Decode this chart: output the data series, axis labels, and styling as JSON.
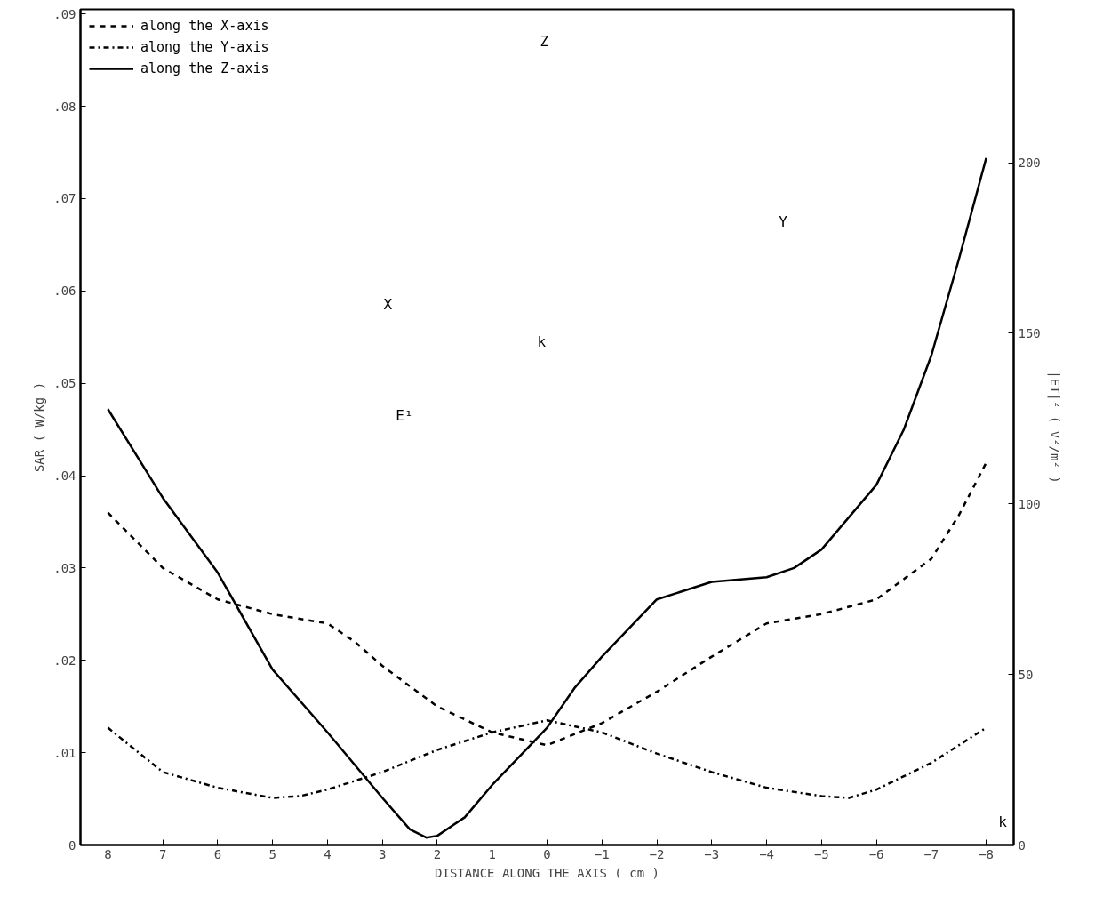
{
  "chart_data": {
    "type": "line",
    "xlabel": "DISTANCE ALONG THE AXIS ( cm )",
    "ylabel": "SAR ( W/kg )",
    "y2label": "|ET|² ( V²/m² )",
    "xlim": [
      8.5,
      -8.5
    ],
    "xticks": [
      8,
      7,
      6,
      5,
      4,
      3,
      2,
      1,
      0,
      -1,
      -2,
      -3,
      -4,
      -5,
      -6,
      -7,
      -8
    ],
    "ylim": [
      0,
      0.0905
    ],
    "yticks": [
      0,
      {
        "value": 0.01,
        "label": ".01"
      },
      {
        "value": 0.02,
        "label": ".02"
      },
      {
        "value": 0.03,
        "label": ".03"
      },
      {
        "value": 0.04,
        "label": ".04"
      },
      {
        "value": 0.05,
        "label": ".05"
      },
      {
        "value": 0.06,
        "label": ".06"
      },
      {
        "value": 0.07,
        "label": ".07"
      },
      {
        "value": 0.08,
        "label": ".08"
      },
      {
        "value": 0.09,
        "label": ".09"
      }
    ],
    "y2lim": [
      0,
      245
    ],
    "y2ticks": [
      0,
      50,
      100,
      150,
      200
    ],
    "grid": false,
    "legend": "top left",
    "marker": "none",
    "annotations": [
      "Z",
      "Y",
      "X",
      "k",
      "E¹",
      "k"
    ],
    "series": [
      {
        "name": "along the X-axis",
        "color": "#000000",
        "line_style": "dashed",
        "x": [
          8,
          7,
          6,
          5,
          4,
          3.5,
          3,
          2,
          1,
          0,
          -1,
          -2,
          -3,
          -4,
          -5,
          -6,
          -7,
          -7.5,
          -8
        ],
        "values": [
          0.036,
          0.03,
          0.0266,
          0.025,
          0.024,
          0.022,
          0.0194,
          0.015,
          0.0122,
          0.0108,
          0.0132,
          0.0166,
          0.0204,
          0.024,
          0.025,
          0.0266,
          0.031,
          0.0357,
          0.0414
        ]
      },
      {
        "name": "along the Y-axis",
        "color": "#000000",
        "line_style": "dashdot",
        "x": [
          8,
          7,
          6,
          5,
          4.5,
          4,
          3,
          2,
          1,
          0,
          -1,
          -2,
          -3,
          -4,
          -5,
          -5.5,
          -6,
          -7,
          -8
        ],
        "values": [
          0.0127,
          0.0079,
          0.0062,
          0.0051,
          0.0053,
          0.006,
          0.0079,
          0.0103,
          0.0122,
          0.0135,
          0.0122,
          0.0099,
          0.0079,
          0.0062,
          0.0053,
          0.0051,
          0.006,
          0.0089,
          0.0127
        ]
      },
      {
        "name": "along the Z-axis",
        "color": "#000000",
        "line_style": "solid",
        "x": [
          8,
          7,
          6,
          5,
          4,
          3,
          2.5,
          2.2,
          2,
          1.5,
          1,
          0,
          -0.5,
          -1,
          -2,
          -3,
          -4,
          -4.5,
          -5,
          -6,
          -6.5,
          -7,
          -7.5,
          -8
        ],
        "values": [
          0.0472,
          0.0376,
          0.0295,
          0.019,
          0.0122,
          0.0051,
          0.0017,
          0.0008,
          0.001,
          0.003,
          0.0065,
          0.0127,
          0.017,
          0.0204,
          0.0266,
          0.0285,
          0.029,
          0.03,
          0.032,
          0.039,
          0.045,
          0.053,
          0.0634,
          0.0744
        ]
      }
    ]
  }
}
